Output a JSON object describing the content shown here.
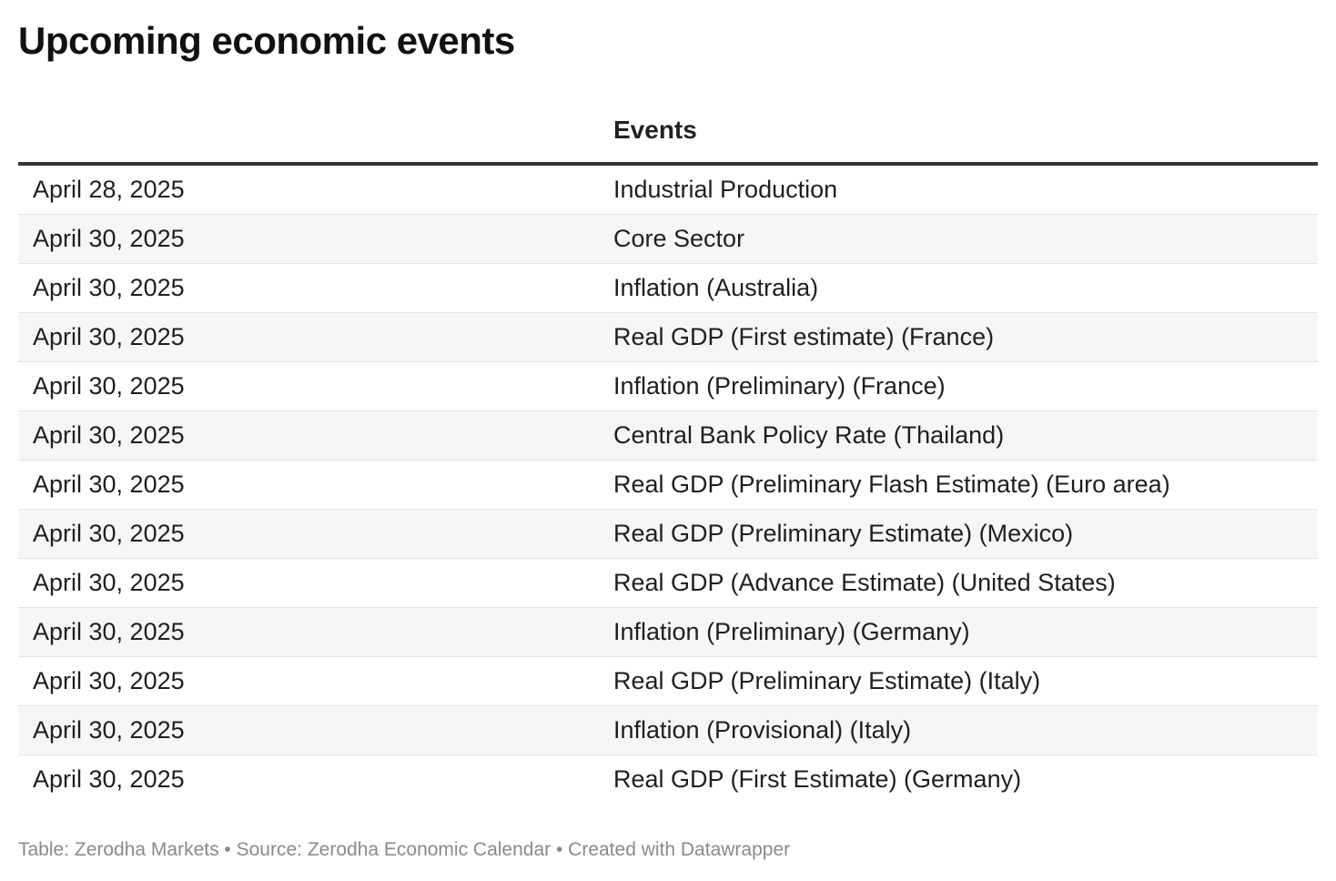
{
  "title": "Upcoming economic events",
  "table": {
    "headers": [
      "",
      "Events"
    ],
    "rows": [
      {
        "date": "April 28, 2025",
        "event": "Industrial Production"
      },
      {
        "date": "April 30, 2025",
        "event": "Core Sector"
      },
      {
        "date": "April 30, 2025",
        "event": "Inflation (Australia)"
      },
      {
        "date": "April 30, 2025",
        "event": "Real GDP (First estimate) (France)"
      },
      {
        "date": "April 30, 2025",
        "event": "Inflation (Preliminary) (France)"
      },
      {
        "date": "April 30, 2025",
        "event": "Central Bank Policy Rate (Thailand)"
      },
      {
        "date": "April 30, 2025",
        "event": "Real GDP (Preliminary Flash Estimate) (Euro area)"
      },
      {
        "date": "April 30, 2025",
        "event": "Real GDP (Preliminary Estimate) (Mexico)"
      },
      {
        "date": "April 30, 2025",
        "event": "Real GDP (Advance Estimate) (United States)"
      },
      {
        "date": "April 30, 2025",
        "event": "Inflation (Preliminary) (Germany)"
      },
      {
        "date": "April 30, 2025",
        "event": "Real GDP (Preliminary Estimate) (Italy)"
      },
      {
        "date": "April 30, 2025",
        "event": "Inflation (Provisional) (Italy)"
      },
      {
        "date": "April 30, 2025",
        "event": "Real GDP (First Estimate) (Germany)"
      }
    ]
  },
  "footer": "Table: Zerodha Markets • Source: Zerodha Economic Calendar • Created with Datawrapper"
}
